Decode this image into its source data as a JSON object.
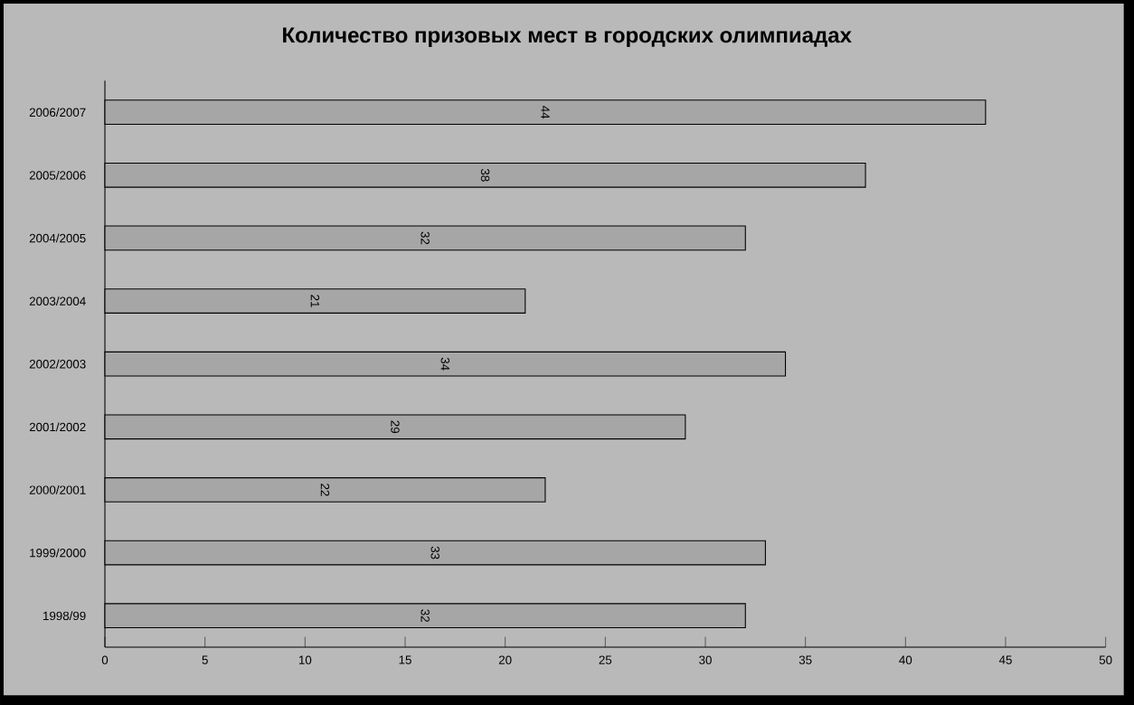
{
  "chart_data": {
    "type": "bar",
    "orientation": "horizontal",
    "title": "Количество призовых мест в городских олимпиадах",
    "categories": [
      "2006/2007",
      "2005/2006",
      "2004/2005",
      "2003/2004",
      "2002/2003",
      "2001/2002",
      "2000/2001",
      "1999/2000",
      "1998/99"
    ],
    "values": [
      44,
      38,
      32,
      21,
      34,
      29,
      22,
      33,
      32
    ],
    "color": "#a6a6a6",
    "xlim": [
      0,
      50
    ],
    "xticks": [
      0,
      5,
      10,
      15,
      20,
      25,
      30,
      35,
      40,
      45,
      50
    ],
    "data_labels": true
  }
}
